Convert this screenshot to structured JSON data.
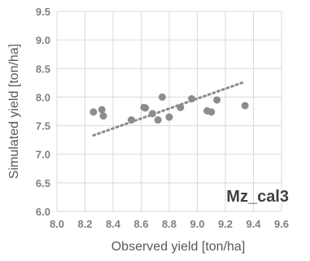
{
  "chart_data": {
    "type": "scatter",
    "xlabel": "Observed yield [ton/ha]",
    "ylabel": "Simulated yield [ton/ha]",
    "annotation": "Mz_cal3",
    "xlim": [
      8.0,
      9.6
    ],
    "ylim": [
      6.0,
      9.5
    ],
    "xticks": [
      "8.0",
      "8.2",
      "8.4",
      "8.6",
      "8.8",
      "9.0",
      "9.2",
      "9.4",
      "9.6"
    ],
    "yticks": [
      "6.0",
      "6.5",
      "7.0",
      "7.5",
      "8.0",
      "8.5",
      "9.0",
      "9.5"
    ],
    "grid": true,
    "trendline": {
      "type": "linear",
      "x": [
        8.26,
        9.33
      ],
      "y": [
        7.33,
        8.26
      ]
    },
    "points": [
      {
        "x": 8.26,
        "y": 7.74
      },
      {
        "x": 8.32,
        "y": 7.78
      },
      {
        "x": 8.33,
        "y": 7.67
      },
      {
        "x": 8.53,
        "y": 7.6
      },
      {
        "x": 8.62,
        "y": 7.82
      },
      {
        "x": 8.63,
        "y": 7.81
      },
      {
        "x": 8.68,
        "y": 7.71
      },
      {
        "x": 8.72,
        "y": 7.6
      },
      {
        "x": 8.75,
        "y": 8.0
      },
      {
        "x": 8.8,
        "y": 7.65
      },
      {
        "x": 8.88,
        "y": 7.82
      },
      {
        "x": 8.96,
        "y": 7.97
      },
      {
        "x": 9.07,
        "y": 7.76
      },
      {
        "x": 9.1,
        "y": 7.74
      },
      {
        "x": 9.14,
        "y": 7.95
      },
      {
        "x": 9.34,
        "y": 7.85
      }
    ]
  }
}
